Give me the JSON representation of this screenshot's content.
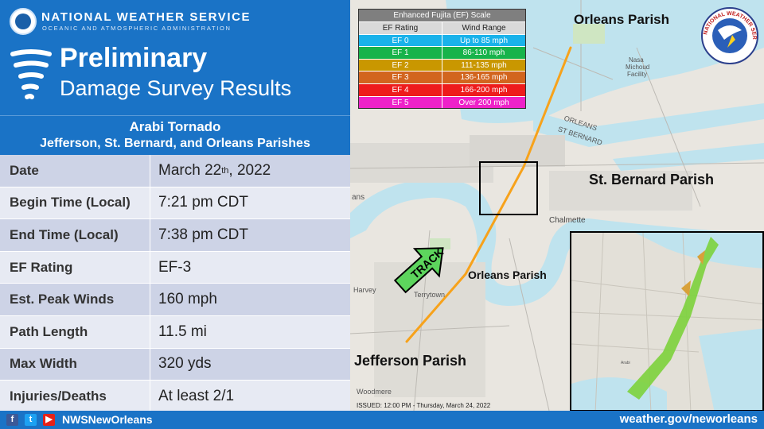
{
  "header": {
    "agency_name": "NATIONAL WEATHER SERVICE",
    "agency_sub": "OCEANIC AND ATMOSPHERIC ADMINISTRATION",
    "title_line1": "Preliminary",
    "title_line2": "Damage Survey Results"
  },
  "event": {
    "name": "Arabi Tornado",
    "area": "Jefferson, St. Bernard, and Orleans Parishes"
  },
  "details": [
    {
      "label": "Date",
      "value": "March 22",
      "sup": "th",
      "value_suffix": ", 2022"
    },
    {
      "label": "Begin Time (Local)",
      "value": "7:21 pm CDT"
    },
    {
      "label": "End Time (Local)",
      "value": "7:38 pm CDT"
    },
    {
      "label": "EF Rating",
      "value": "EF-3"
    },
    {
      "label": "Est. Peak Winds",
      "value": "160 mph"
    },
    {
      "label": "Path Length",
      "value": "11.5 mi"
    },
    {
      "label": "Max Width",
      "value": "320 yds"
    },
    {
      "label": "Injuries/Deaths",
      "value": "At least 2/1"
    }
  ],
  "legend": {
    "title": "Enhanced Fujita (EF) Scale",
    "col1": "EF Rating",
    "col2": "Wind Range",
    "rows": [
      {
        "rating": "EF 0",
        "range": "Up to 85 mph",
        "color": "#19b2ea"
      },
      {
        "rating": "EF 1",
        "range": "86-110 mph",
        "color": "#17b34a"
      },
      {
        "rating": "EF 2",
        "range": "111-135 mph",
        "color": "#c99700"
      },
      {
        "rating": "EF 3",
        "range": "136-165 mph",
        "color": "#d2651e"
      },
      {
        "rating": "EF 4",
        "range": "166-200 mph",
        "color": "#ee1c1c"
      },
      {
        "rating": "EF 5",
        "range": "Over 200 mph",
        "color": "#ee22c9"
      }
    ]
  },
  "map": {
    "labels": {
      "orleans_top": "Orleans Parish",
      "st_bernard": "St. Bernard Parish",
      "orleans_mid": "Orleans Parish",
      "jefferson": "Jefferson Parish",
      "track": "TRACK",
      "chalmette": "Chalmette",
      "harvey": "Harvey",
      "terrytown": "Terrytown",
      "woodmere": "Woodmere",
      "nasa": "Nasa",
      "michoud": "Michoud",
      "facility": "Facility",
      "orleans_road": "ORLEANS",
      "st_bernard_road": "ST BERNARD",
      "ans": "ans",
      "arabi_small": "Arabi"
    },
    "issued": "ISSUED: 12:00 PM - Thursday, March 24, 2022",
    "seal_text": "NATIONAL WEATHER SERVICE"
  },
  "footer": {
    "handle": "NWSNewOrleans",
    "website": "weather.gov/neworleans"
  },
  "colors": {
    "brand_blue": "#1a73c6",
    "track": "#f7a21b",
    "water": "#bfe3ee",
    "land": "#e9e6e0"
  }
}
